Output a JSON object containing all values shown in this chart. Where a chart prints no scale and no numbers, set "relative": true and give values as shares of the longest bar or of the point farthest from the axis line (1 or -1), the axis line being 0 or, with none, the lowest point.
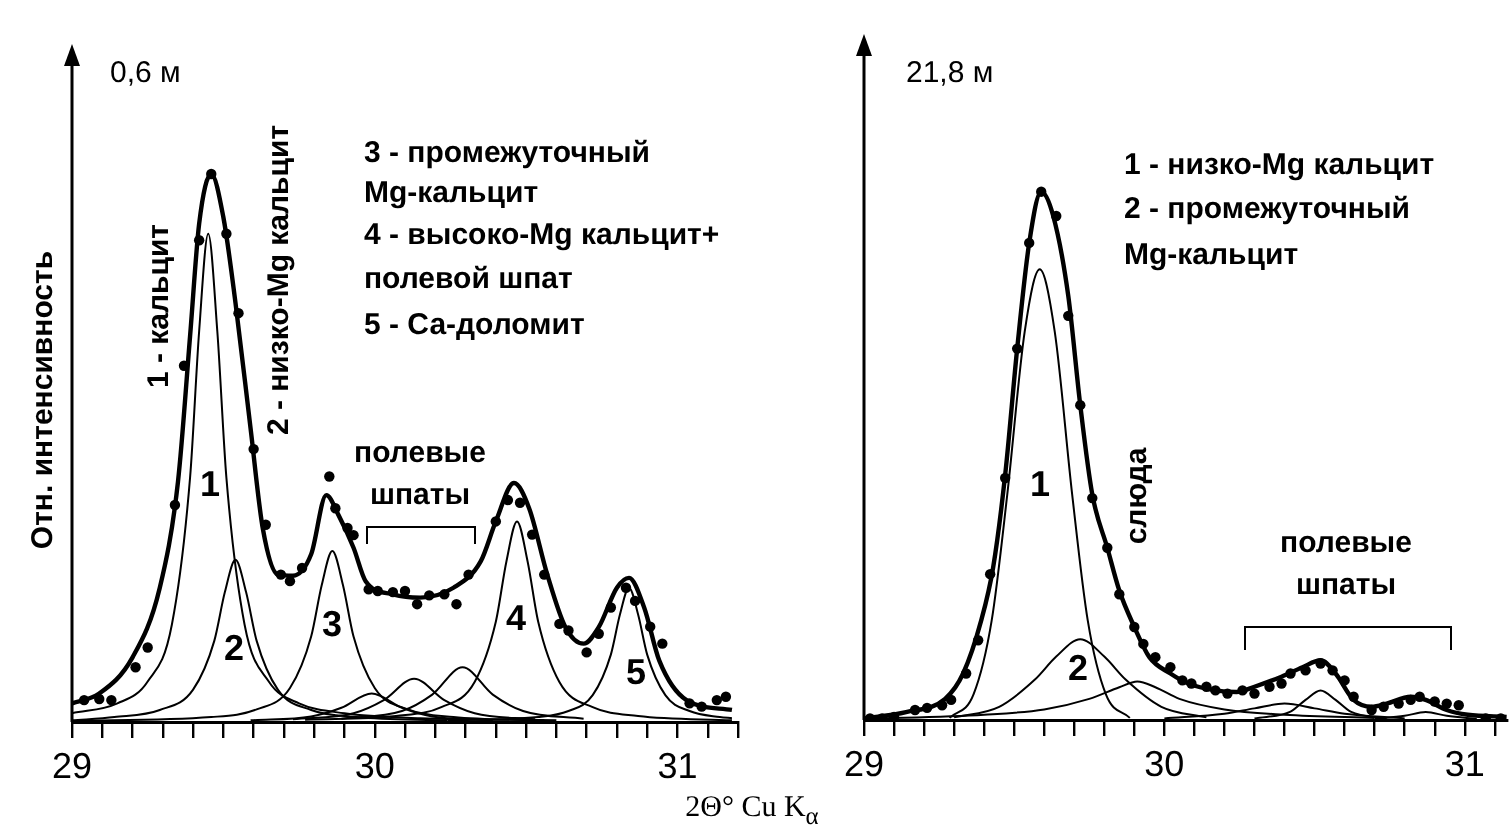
{
  "chart_data": [
    {
      "type": "line",
      "title": "0,6 м",
      "ylabel": "Отн. интенсивность",
      "xlabel": "2Θ° Cu K$_{α}$",
      "relative": true,
      "legend": false,
      "grid": false,
      "tick_labels": "x",
      "xlim": [
        29,
        31.2
      ],
      "xticks": [
        29,
        {
          "value": 29.1,
          "label": null
        },
        {
          "value": 29.2,
          "label": null
        },
        {
          "value": 29.3,
          "label": null
        },
        {
          "value": 29.4,
          "label": null
        },
        {
          "value": 29.5,
          "label": null
        },
        {
          "value": 29.6,
          "label": null
        },
        {
          "value": 29.7,
          "label": null
        },
        {
          "value": 29.8,
          "label": null
        },
        {
          "value": 29.9,
          "label": null
        },
        30,
        {
          "value": 30.1,
          "label": null
        },
        {
          "value": 30.2,
          "label": null
        },
        {
          "value": 30.3,
          "label": null
        },
        {
          "value": 30.4,
          "label": null
        },
        {
          "value": 30.5,
          "label": null
        },
        {
          "value": 30.6,
          "label": null
        },
        {
          "value": 30.7,
          "label": null
        },
        {
          "value": 30.8,
          "label": null
        },
        {
          "value": 30.9,
          "label": null
        },
        31,
        {
          "value": 31.1,
          "label": null
        },
        {
          "value": 31.2,
          "label": null
        }
      ],
      "series": [
        {
          "type": "scatter",
          "marker": "circle",
          "color": "#000000",
          "x": [
            29.04,
            29.09,
            29.13,
            29.21,
            29.25,
            29.34,
            29.37,
            29.42,
            29.46,
            29.51,
            29.55,
            29.6,
            29.64,
            29.69,
            29.72,
            29.76,
            29.85,
            29.87,
            29.91,
            29.93,
            29.98,
            30.01,
            30.06,
            30.1,
            30.14,
            30.18,
            30.23,
            30.27,
            30.31,
            30.4,
            30.44,
            30.48,
            30.52,
            30.56,
            30.61,
            30.64,
            30.7,
            30.74,
            30.78,
            30.83,
            30.86,
            30.91,
            30.95,
            31.04,
            31.08,
            31.13,
            31.16
          ],
          "values": [
            0.04,
            0.042,
            0.04,
            0.1,
            0.136,
            0.396,
            0.65,
            0.879,
            1.0,
            0.891,
            0.746,
            0.498,
            0.36,
            0.269,
            0.257,
            0.281,
            0.448,
            0.39,
            0.354,
            0.341,
            0.242,
            0.239,
            0.237,
            0.239,
            0.215,
            0.231,
            0.233,
            0.215,
            0.269,
            0.366,
            0.405,
            0.4,
            0.342,
            0.269,
            0.179,
            0.167,
            0.127,
            0.161,
            0.209,
            0.245,
            0.221,
            0.174,
            0.143,
            0.034,
            0.028,
            0.04,
            0.046
          ]
        },
        {
          "type": "line",
          "marker": "none",
          "color": "#000000",
          "x": [
            29.0,
            29.09,
            29.2,
            29.29,
            29.35,
            29.39,
            29.42,
            29.46,
            29.5,
            29.54,
            29.59,
            29.63,
            29.68,
            29.73,
            29.79,
            29.84,
            29.88,
            29.93,
            29.97,
            30.06,
            30.15,
            30.26,
            30.35,
            30.4,
            30.46,
            30.51,
            30.57,
            30.63,
            30.69,
            30.74,
            30.8,
            30.84,
            30.89,
            30.94,
            31.03,
            31.18
          ],
          "values": [
            0.034,
            0.052,
            0.118,
            0.245,
            0.438,
            0.704,
            0.909,
            1.0,
            0.921,
            0.765,
            0.535,
            0.354,
            0.269,
            0.267,
            0.306,
            0.414,
            0.378,
            0.318,
            0.257,
            0.233,
            0.227,
            0.245,
            0.293,
            0.366,
            0.436,
            0.39,
            0.269,
            0.173,
            0.143,
            0.173,
            0.245,
            0.263,
            0.209,
            0.112,
            0.04,
            0.022
          ]
        },
        {
          "type": "line",
          "marker": "none",
          "color": "#000000",
          "x": [
            29.0,
            29.15,
            29.25,
            29.33,
            29.39,
            29.42,
            29.45,
            29.48,
            29.51,
            29.57,
            29.65,
            29.75,
            29.9,
            30.15,
            30.6
          ],
          "values": [
            0.016,
            0.034,
            0.074,
            0.178,
            0.446,
            0.713,
            0.891,
            0.713,
            0.446,
            0.178,
            0.074,
            0.034,
            0.016,
            0.007,
            0.003
          ]
        },
        {
          "type": "line",
          "marker": "none",
          "color": "#000000",
          "x": [
            29.0,
            29.14,
            29.29,
            29.4,
            29.47,
            29.505,
            29.54,
            29.575,
            29.61,
            29.68,
            29.79,
            29.94,
            30.24
          ],
          "values": [
            0.003,
            0.009,
            0.022,
            0.059,
            0.148,
            0.237,
            0.296,
            0.237,
            0.148,
            0.059,
            0.022,
            0.009,
            0.003
          ]
        },
        {
          "type": "line",
          "marker": "none",
          "color": "#000000",
          "x": [
            29.0,
            29.46,
            29.61,
            29.72,
            29.79,
            29.825,
            29.86,
            29.895,
            29.93,
            30.0,
            30.11,
            30.26,
            30.56
          ],
          "values": [
            0.002,
            0.009,
            0.023,
            0.062,
            0.156,
            0.25,
            0.312,
            0.25,
            0.156,
            0.062,
            0.023,
            0.009,
            0.003
          ]
        },
        {
          "type": "line",
          "marker": "none",
          "color": "#000000",
          "x": [
            29.59,
            29.79,
            29.89,
            29.99,
            30.09,
            30.19,
            30.39
          ],
          "values": [
            0.003,
            0.01,
            0.026,
            0.052,
            0.026,
            0.01,
            0.003
          ]
        },
        {
          "type": "line",
          "marker": "none",
          "color": "#000000",
          "x": [
            29.73,
            29.93,
            30.03,
            30.13,
            30.23,
            30.33,
            30.53
          ],
          "values": [
            0.005,
            0.016,
            0.04,
            0.079,
            0.04,
            0.016,
            0.005
          ]
        },
        {
          "type": "line",
          "marker": "none",
          "color": "#000000",
          "x": [
            29.89,
            30.09,
            30.19,
            30.29,
            30.39,
            30.49,
            30.69
          ],
          "values": [
            0.006,
            0.02,
            0.05,
            0.1,
            0.05,
            0.02,
            0.006
          ]
        },
        {
          "type": "line",
          "marker": "none",
          "color": "#000000",
          "x": [
            29.77,
            30.07,
            30.22,
            30.33,
            30.4,
            30.435,
            30.47,
            30.505,
            30.54,
            30.61,
            30.72,
            30.87,
            31.18
          ],
          "values": [
            0.004,
            0.011,
            0.027,
            0.073,
            0.183,
            0.293,
            0.366,
            0.293,
            0.183,
            0.073,
            0.027,
            0.011,
            0.003
          ]
        },
        {
          "type": "line",
          "marker": "none",
          "color": "#000000",
          "x": [
            30.24,
            30.54,
            30.64,
            30.72,
            30.78,
            30.81,
            30.84,
            30.87,
            30.9,
            30.96,
            31.04,
            31.14,
            31.18
          ],
          "values": [
            0.003,
            0.009,
            0.02,
            0.049,
            0.123,
            0.196,
            0.245,
            0.196,
            0.123,
            0.049,
            0.02,
            0.009,
            0.007
          ]
        }
      ],
      "annotations": [
        "1 - кальцит",
        "2 - низко-Mg кальцит",
        "3 - промежуточный",
        "Mg-кальцит",
        "4 - высоко-Mg кальцит+",
        "полевой шпат",
        "5 - Са-доломит",
        "1",
        "2",
        "3",
        "4",
        "5",
        "полевые шпаты"
      ]
    },
    {
      "type": "line",
      "title": "21,8 м",
      "relative": true,
      "legend": false,
      "grid": false,
      "tick_labels": "x",
      "xlim": [
        29,
        31.14
      ],
      "xticks": [
        29,
        {
          "value": 29.1,
          "label": null
        },
        {
          "value": 29.2,
          "label": null
        },
        {
          "value": 29.3,
          "label": null
        },
        {
          "value": 29.4,
          "label": null
        },
        {
          "value": 29.5,
          "label": null
        },
        {
          "value": 29.6,
          "label": null
        },
        {
          "value": 29.7,
          "label": null
        },
        {
          "value": 29.8,
          "label": null
        },
        {
          "value": 29.9,
          "label": null
        },
        30,
        {
          "value": 30.1,
          "label": null
        },
        {
          "value": 30.2,
          "label": null
        },
        {
          "value": 30.3,
          "label": null
        },
        {
          "value": 30.4,
          "label": null
        },
        {
          "value": 30.5,
          "label": null
        },
        {
          "value": 30.6,
          "label": null
        },
        {
          "value": 30.7,
          "label": null
        },
        {
          "value": 30.8,
          "label": null
        },
        {
          "value": 30.9,
          "label": null
        },
        31,
        {
          "value": 31.1,
          "label": null
        }
      ],
      "series": [
        {
          "type": "scatter",
          "marker": "circle",
          "color": "#000000",
          "x": [
            29.02,
            29.06,
            29.1,
            29.17,
            29.21,
            29.26,
            29.29,
            29.34,
            29.38,
            29.42,
            29.47,
            29.51,
            29.55,
            29.59,
            29.64,
            29.68,
            29.72,
            29.76,
            29.81,
            29.85,
            29.9,
            29.93,
            29.97,
            30.02,
            30.06,
            30.09,
            30.14,
            30.17,
            30.21,
            30.26,
            30.3,
            30.35,
            30.39,
            30.42,
            30.47,
            30.52,
            30.56,
            30.6,
            30.63,
            30.69,
            30.73,
            30.78,
            30.82,
            30.85,
            30.9,
            30.94,
            30.98,
            31.07,
            31.12
          ],
          "values": [
            0.003,
            0.003,
            0.006,
            0.019,
            0.023,
            0.028,
            0.038,
            0.088,
            0.151,
            0.276,
            0.458,
            0.703,
            0.903,
            1.0,
            0.954,
            0.765,
            0.596,
            0.42,
            0.326,
            0.238,
            0.176,
            0.144,
            0.119,
            0.1,
            0.075,
            0.069,
            0.063,
            0.056,
            0.05,
            0.056,
            0.05,
            0.063,
            0.069,
            0.088,
            0.094,
            0.107,
            0.094,
            0.075,
            0.044,
            0.019,
            0.025,
            0.031,
            0.038,
            0.044,
            0.035,
            0.031,
            0.028,
            0.003,
            0.003
          ]
        },
        {
          "type": "line",
          "marker": "none",
          "color": "#000000",
          "x": [
            29.0,
            29.14,
            29.27,
            29.33,
            29.39,
            29.43,
            29.47,
            29.51,
            29.55,
            29.59,
            29.63,
            29.68,
            29.72,
            29.76,
            29.81,
            29.85,
            29.9,
            29.95,
            30.02,
            30.08,
            30.17,
            30.24,
            30.3,
            30.39,
            30.46,
            30.52,
            30.57,
            30.63,
            30.69,
            30.74,
            30.82,
            30.87,
            30.94,
            31.01,
            31.14
          ],
          "values": [
            0.003,
            0.015,
            0.04,
            0.088,
            0.188,
            0.289,
            0.464,
            0.703,
            0.903,
            1.0,
            0.954,
            0.803,
            0.596,
            0.427,
            0.326,
            0.245,
            0.176,
            0.119,
            0.088,
            0.069,
            0.056,
            0.053,
            0.063,
            0.082,
            0.1,
            0.113,
            0.088,
            0.038,
            0.025,
            0.031,
            0.044,
            0.038,
            0.019,
            0.01,
            0.006
          ]
        },
        {
          "type": "line",
          "marker": "none",
          "color": "#000000",
          "x": [
            29.285,
            29.365,
            29.425,
            29.477,
            29.535,
            29.585,
            29.635,
            29.693,
            29.745,
            29.805,
            29.885
          ],
          "values": [
            0.004,
            0.049,
            0.188,
            0.427,
            0.735,
            0.853,
            0.735,
            0.427,
            0.188,
            0.049,
            0.004
          ]
        },
        {
          "type": "line",
          "marker": "none",
          "color": "#000000",
          "x": [
            29.3,
            29.45,
            29.57,
            29.64,
            29.72,
            29.8,
            29.87,
            29.99,
            30.14
          ],
          "values": [
            0.005,
            0.025,
            0.077,
            0.12,
            0.153,
            0.12,
            0.077,
            0.025,
            0.005
          ]
        },
        {
          "type": "line",
          "marker": "none",
          "color": "#000000",
          "x": [
            29.0,
            29.4,
            29.6,
            29.75,
            29.85,
            29.91,
            29.97,
            30.05,
            30.2,
            30.4,
            30.7
          ],
          "values": [
            0.002,
            0.01,
            0.02,
            0.04,
            0.062,
            0.073,
            0.062,
            0.04,
            0.02,
            0.01,
            0.004
          ]
        },
        {
          "type": "line",
          "marker": "none",
          "color": "#000000",
          "x": [
            30.0,
            30.2,
            30.3,
            30.4,
            30.5,
            30.6,
            30.8
          ],
          "values": [
            0.003,
            0.012,
            0.022,
            0.031,
            0.022,
            0.012,
            0.003
          ]
        },
        {
          "type": "line",
          "marker": "none",
          "color": "#000000",
          "x": [
            30.3,
            30.42,
            30.47,
            30.52,
            30.57,
            30.62,
            30.74
          ],
          "values": [
            0.003,
            0.016,
            0.038,
            0.056,
            0.038,
            0.016,
            0.003
          ]
        },
        {
          "type": "line",
          "marker": "none",
          "color": "#000000",
          "x": [
            30.7,
            30.8,
            30.87,
            30.94,
            31.04
          ],
          "values": [
            0.002,
            0.008,
            0.015,
            0.008,
            0.002
          ]
        }
      ],
      "annotations": [
        "1 - низко-Mg кальцит",
        "2 - промежуточный",
        "Mg-кальцит",
        "слюда",
        "1",
        "2",
        "полевые шпаты"
      ]
    }
  ]
}
